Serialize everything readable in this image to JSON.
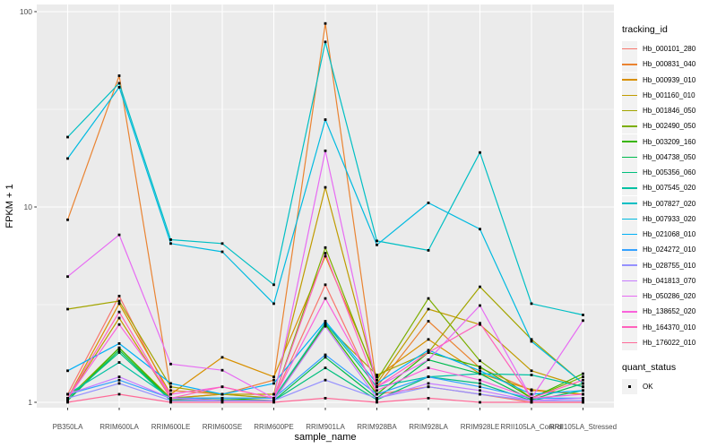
{
  "chart_data": {
    "type": "line",
    "title": "",
    "xlabel": "sample_name",
    "ylabel": "FPKM + 1",
    "yscale": "log10",
    "ylim": [
      1,
      100
    ],
    "grid": "white major+minor on gray panel",
    "legend_position": "right",
    "panel_bg": "#EBEBEB",
    "grid_color": "#FFFFFF",
    "tick_text_color": "#4D4D4D",
    "marker": {
      "shape": "square",
      "color": "#000000"
    },
    "y_ticks": [
      {
        "label": "1",
        "value": 1
      },
      {
        "label": "10",
        "value": 10
      },
      {
        "label": "100",
        "value": 100
      }
    ],
    "y_minor_ticks": [
      3.1623,
      31.623
    ],
    "categories": [
      "PB350LA",
      "RRIM600LA",
      "RRIM600LE",
      "RRIM600SE",
      "RRIM600PE",
      "RRIM901LA",
      "RRIM928BA",
      "RRIM928LA",
      "RRIM928LE",
      "RRII105LA_Control",
      "RRII105LA_Stressed"
    ],
    "series": [
      {
        "name": "Hb_000101_280",
        "color": "#F8766D",
        "values": [
          1.1,
          3.5,
          1.05,
          1.1,
          1.05,
          4.0,
          1.1,
          1.2,
          1.1,
          1.0,
          1.0
        ]
      },
      {
        "name": "Hb_000831_040",
        "color": "#EA8331",
        "values": [
          8.6,
          47.0,
          1.15,
          1.1,
          1.3,
          87.0,
          1.2,
          2.6,
          1.5,
          1.15,
          1.1
        ]
      },
      {
        "name": "Hb_000939_010",
        "color": "#D89000",
        "values": [
          1.05,
          3.2,
          1.1,
          1.7,
          1.35,
          5.6,
          1.35,
          2.1,
          1.4,
          1.16,
          1.1
        ]
      },
      {
        "name": "Hb_001160_010",
        "color": "#C09B00",
        "values": [
          1.05,
          2.7,
          1.05,
          1.1,
          1.1,
          12.6,
          1.25,
          3.0,
          2.5,
          1.45,
          1.2
        ]
      },
      {
        "name": "Hb_001846_050",
        "color": "#A3A500",
        "values": [
          3.0,
          3.3,
          1.2,
          1.1,
          1.05,
          2.5,
          1.38,
          1.8,
          3.9,
          2.1,
          1.25
        ]
      },
      {
        "name": "Hb_002490_050",
        "color": "#7CAE00",
        "values": [
          1.05,
          1.9,
          1.05,
          1.05,
          1.05,
          6.2,
          1.3,
          3.4,
          1.63,
          1.05,
          1.35
        ]
      },
      {
        "name": "Hb_003209_160",
        "color": "#39B600",
        "values": [
          1.02,
          1.9,
          1.03,
          1.05,
          1.02,
          2.5,
          1.1,
          1.8,
          1.52,
          1.05,
          1.4
        ]
      },
      {
        "name": "Hb_004738_050",
        "color": "#00BB4E",
        "values": [
          1.02,
          1.85,
          1.02,
          1.03,
          1.02,
          1.7,
          1.05,
          1.65,
          1.4,
          1.03,
          1.25
        ]
      },
      {
        "name": "Hb_005356_060",
        "color": "#00BF7D",
        "values": [
          1.05,
          1.8,
          1.02,
          1.02,
          1.02,
          1.5,
          1.03,
          1.35,
          1.25,
          1.02,
          1.15
        ]
      },
      {
        "name": "Hb_007545_020",
        "color": "#00C1A3",
        "values": [
          1.1,
          1.6,
          1.05,
          1.05,
          1.05,
          2.55,
          1.2,
          1.35,
          1.4,
          1.38,
          1.2
        ]
      },
      {
        "name": "Hb_007827_020",
        "color": "#00BFC4",
        "values": [
          22.8,
          43.0,
          6.8,
          6.5,
          4.0,
          70.0,
          6.7,
          6.0,
          19.0,
          3.2,
          2.8
        ]
      },
      {
        "name": "Hb_007933_020",
        "color": "#00BAE0",
        "values": [
          17.7,
          41.0,
          6.5,
          5.9,
          3.2,
          28.0,
          6.4,
          10.5,
          7.7,
          2.05,
          1.25
        ]
      },
      {
        "name": "Hb_021068_010",
        "color": "#00B0F6",
        "values": [
          1.45,
          2.0,
          1.25,
          1.1,
          1.25,
          2.6,
          1.25,
          1.85,
          1.45,
          1.1,
          1.15
        ]
      },
      {
        "name": "Hb_024272_010",
        "color": "#35A2FF",
        "values": [
          1.1,
          1.3,
          1.05,
          1.05,
          1.05,
          1.75,
          1.1,
          1.35,
          1.2,
          1.05,
          1.05
        ]
      },
      {
        "name": "Hb_028755_010",
        "color": "#9590FF",
        "values": [
          1.05,
          1.25,
          1.02,
          1.02,
          1.02,
          1.3,
          1.05,
          1.2,
          1.1,
          1.02,
          1.02
        ]
      },
      {
        "name": "Hb_041813_070",
        "color": "#C77CFF",
        "values": [
          1.1,
          1.35,
          1.05,
          1.02,
          1.02,
          2.45,
          1.05,
          1.25,
          1.15,
          1.02,
          1.05
        ]
      },
      {
        "name": "Hb_050286_020",
        "color": "#E76BF3",
        "values": [
          4.4,
          7.2,
          1.57,
          1.46,
          1.05,
          19.4,
          1.2,
          1.65,
          3.13,
          1.05,
          2.62
        ]
      },
      {
        "name": "Hb_138652_020",
        "color": "#FA62DB",
        "values": [
          1.05,
          2.5,
          1.1,
          1.2,
          1.05,
          3.4,
          1.15,
          1.5,
          1.3,
          1.05,
          1.1
        ]
      },
      {
        "name": "Hb_164370_010",
        "color": "#FF62BC",
        "values": [
          1.05,
          2.9,
          1.05,
          1.2,
          1.05,
          5.8,
          1.2,
          1.8,
          2.54,
          1.05,
          1.3
        ]
      },
      {
        "name": "Hb_176022_010",
        "color": "#FF6A98",
        "values": [
          1.0,
          1.1,
          1.0,
          1.0,
          1.0,
          1.05,
          1.0,
          1.05,
          1.0,
          1.0,
          1.0
        ]
      }
    ]
  },
  "legend": {
    "tracking_title": "tracking_id",
    "quant_title": "quant_status",
    "quant_items": [
      {
        "label": "OK",
        "marker": "black-square"
      }
    ]
  }
}
